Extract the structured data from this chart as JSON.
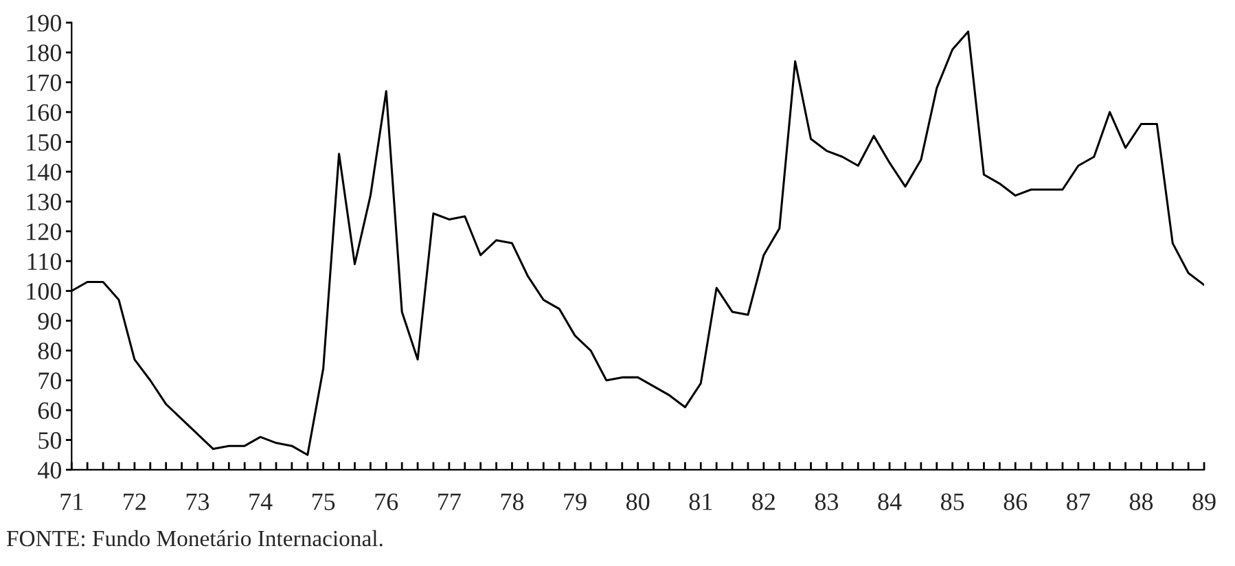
{
  "chart_data": {
    "type": "line",
    "x": [
      71,
      71.25,
      71.5,
      71.75,
      72,
      72.25,
      72.5,
      72.75,
      73,
      73.25,
      73.5,
      73.75,
      74,
      74.25,
      74.5,
      74.75,
      75,
      75.25,
      75.5,
      75.75,
      76,
      76.25,
      76.5,
      76.75,
      77,
      77.25,
      77.5,
      77.75,
      78,
      78.25,
      78.5,
      78.75,
      79,
      79.25,
      79.5,
      79.75,
      80,
      80.25,
      80.5,
      80.75,
      81,
      81.25,
      81.5,
      81.75,
      82,
      82.25,
      82.5,
      82.75,
      83,
      83.25,
      83.5,
      83.75,
      84,
      84.25,
      84.5,
      84.75,
      85,
      85.25,
      85.5,
      85.75,
      86,
      86.25,
      86.5,
      86.75,
      87,
      87.25,
      87.5,
      87.75,
      88,
      88.25,
      88.5,
      88.75,
      89
    ],
    "series": [
      {
        "color": "#000000",
        "values": [
          100,
          103,
          103,
          97,
          77,
          70,
          62,
          57,
          52,
          47,
          48,
          48,
          51,
          49,
          48,
          45,
          74,
          146,
          109,
          132,
          167,
          93,
          77,
          126,
          124,
          125,
          112,
          117,
          116,
          105,
          97,
          94,
          85,
          80,
          70,
          71,
          71,
          68,
          65,
          61,
          69,
          101,
          93,
          92,
          112,
          121,
          177,
          151,
          147,
          145,
          142,
          152,
          143,
          135,
          144,
          168,
          181,
          187,
          139,
          136,
          132,
          134,
          134,
          134,
          142,
          145,
          160,
          148,
          156,
          156,
          116,
          106,
          102
        ]
      }
    ],
    "xlim": [
      71,
      89
    ],
    "ylim": [
      40,
      190
    ],
    "xticks": [
      71,
      {
        "value": 71.25,
        "label": null
      },
      {
        "value": 71.5,
        "label": null
      },
      {
        "value": 71.75,
        "label": null
      },
      72,
      {
        "value": 72.25,
        "label": null
      },
      {
        "value": 72.5,
        "label": null
      },
      {
        "value": 72.75,
        "label": null
      },
      73,
      {
        "value": 73.25,
        "label": null
      },
      {
        "value": 73.5,
        "label": null
      },
      {
        "value": 73.75,
        "label": null
      },
      74,
      {
        "value": 74.25,
        "label": null
      },
      {
        "value": 74.5,
        "label": null
      },
      {
        "value": 74.75,
        "label": null
      },
      75,
      {
        "value": 75.25,
        "label": null
      },
      {
        "value": 75.5,
        "label": null
      },
      {
        "value": 75.75,
        "label": null
      },
      76,
      {
        "value": 76.25,
        "label": null
      },
      {
        "value": 76.5,
        "label": null
      },
      {
        "value": 76.75,
        "label": null
      },
      77,
      {
        "value": 77.25,
        "label": null
      },
      {
        "value": 77.5,
        "label": null
      },
      {
        "value": 77.75,
        "label": null
      },
      78,
      {
        "value": 78.25,
        "label": null
      },
      {
        "value": 78.5,
        "label": null
      },
      {
        "value": 78.75,
        "label": null
      },
      79,
      {
        "value": 79.25,
        "label": null
      },
      {
        "value": 79.5,
        "label": null
      },
      {
        "value": 79.75,
        "label": null
      },
      80,
      {
        "value": 80.25,
        "label": null
      },
      {
        "value": 80.5,
        "label": null
      },
      {
        "value": 80.75,
        "label": null
      },
      81,
      {
        "value": 81.25,
        "label": null
      },
      {
        "value": 81.5,
        "label": null
      },
      {
        "value": 81.75,
        "label": null
      },
      82,
      {
        "value": 82.25,
        "label": null
      },
      {
        "value": 82.5,
        "label": null
      },
      {
        "value": 82.75,
        "label": null
      },
      83,
      {
        "value": 83.25,
        "label": null
      },
      {
        "value": 83.5,
        "label": null
      },
      {
        "value": 83.75,
        "label": null
      },
      84,
      {
        "value": 84.25,
        "label": null
      },
      {
        "value": 84.5,
        "label": null
      },
      {
        "value": 84.75,
        "label": null
      },
      85,
      {
        "value": 85.25,
        "label": null
      },
      {
        "value": 85.5,
        "label": null
      },
      {
        "value": 85.75,
        "label": null
      },
      86,
      {
        "value": 86.25,
        "label": null
      },
      {
        "value": 86.5,
        "label": null
      },
      {
        "value": 86.75,
        "label": null
      },
      87,
      {
        "value": 87.25,
        "label": null
      },
      {
        "value": 87.5,
        "label": null
      },
      {
        "value": 87.75,
        "label": null
      },
      88,
      {
        "value": 88.25,
        "label": null
      },
      {
        "value": 88.5,
        "label": null
      },
      {
        "value": 88.75,
        "label": null
      },
      89
    ],
    "yticks": [
      40,
      50,
      60,
      70,
      80,
      90,
      100,
      110,
      120,
      130,
      140,
      150,
      160,
      170,
      180,
      190
    ],
    "grid": false,
    "legend": false,
    "annotations": [
      "FONTE: Fundo Monetário Internacional."
    ]
  }
}
